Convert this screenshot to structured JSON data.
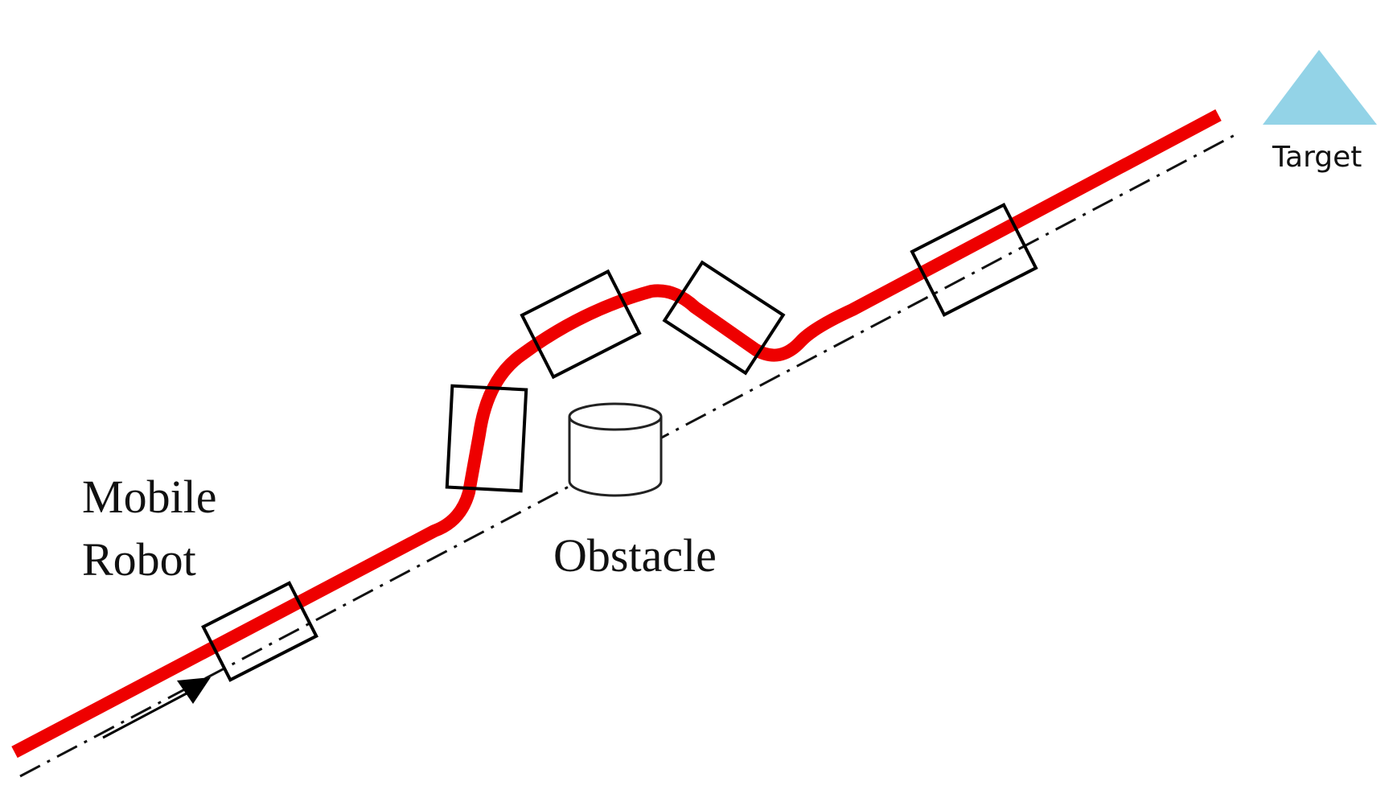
{
  "labels": {
    "robot_line1": "Mobile",
    "robot_line2": "Robot",
    "obstacle": "Obstacle",
    "target": "Target"
  },
  "colors": {
    "actual_path": "#ee0000",
    "reference_path": "#111111",
    "robot_outline": "#000000",
    "obstacle_outline": "#222222",
    "target_fill": "#93d3e7"
  },
  "icons": {
    "target": "triangle-icon",
    "obstacle": "cylinder-icon",
    "direction": "arrow-icon"
  }
}
